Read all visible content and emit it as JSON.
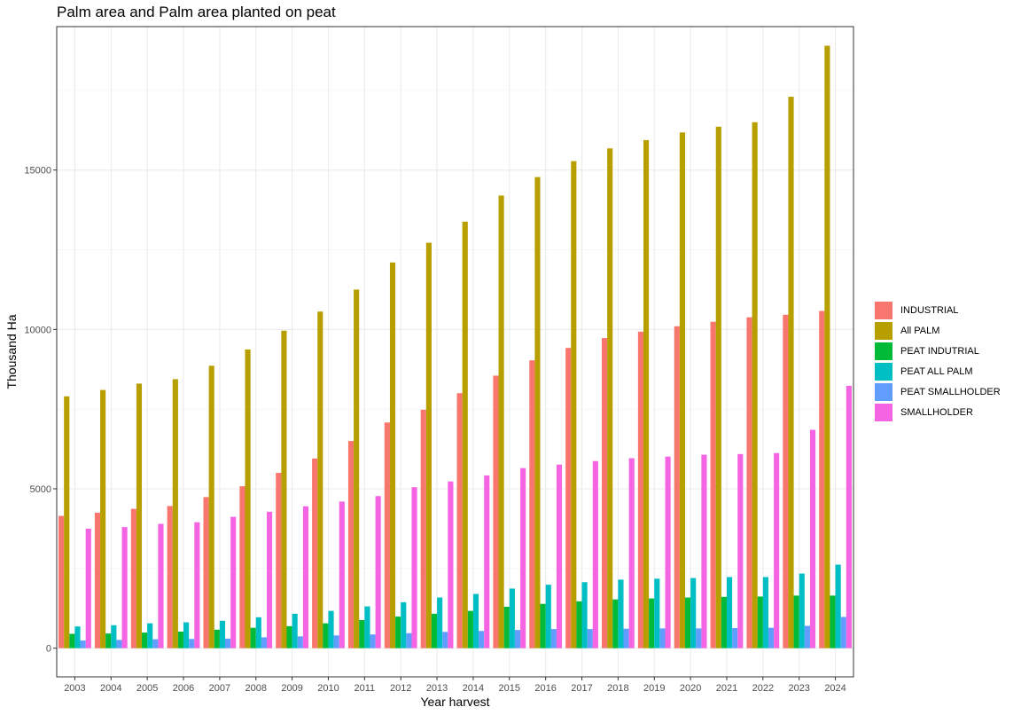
{
  "chart_data": {
    "type": "bar",
    "title": "Palm area and Palm area planted on peat",
    "xlabel": "Year harvest",
    "ylabel": "Thousand Ha",
    "ylim": [
      -900,
      19500
    ],
    "yticks": [
      0,
      5000,
      10000,
      15000
    ],
    "grid": true,
    "legend_position": "right",
    "categories": [
      "2003",
      "2004",
      "2005",
      "2006",
      "2007",
      "2008",
      "2009",
      "2010",
      "2011",
      "2012",
      "2013",
      "2014",
      "2015",
      "2016",
      "2017",
      "2018",
      "2019",
      "2020",
      "2021",
      "2022",
      "2023",
      "2024"
    ],
    "series": [
      {
        "name": "INDUSTRIAL",
        "color": "#F8766D",
        "values": [
          4150,
          4250,
          4370,
          4460,
          4740,
          5080,
          5500,
          5950,
          6500,
          7080,
          7480,
          8000,
          8550,
          9030,
          9420,
          9730,
          9930,
          10100,
          10240,
          10380,
          10460,
          10580
        ]
      },
      {
        "name": "All PALM",
        "color": "#B79F00",
        "values": [
          7900,
          8100,
          8300,
          8440,
          8860,
          9370,
          9960,
          10560,
          11250,
          12100,
          12720,
          13380,
          14200,
          14780,
          15280,
          15680,
          15940,
          16180,
          16360,
          16500,
          17300,
          18900
        ]
      },
      {
        "name": "PEAT INDUTRIAL",
        "color": "#00BA38",
        "values": [
          450,
          460,
          490,
          520,
          580,
          640,
          690,
          780,
          880,
          990,
          1080,
          1170,
          1300,
          1390,
          1470,
          1530,
          1560,
          1590,
          1610,
          1620,
          1650,
          1650
        ]
      },
      {
        "name": "PEAT ALL PALM",
        "color": "#00BFC4",
        "values": [
          680,
          720,
          780,
          810,
          860,
          970,
          1080,
          1170,
          1310,
          1440,
          1590,
          1700,
          1870,
          1990,
          2070,
          2150,
          2180,
          2200,
          2230,
          2230,
          2340,
          2620
        ]
      },
      {
        "name": "PEAT SMALLHOLDER",
        "color": "#619CFF",
        "values": [
          240,
          260,
          280,
          290,
          300,
          340,
          370,
          400,
          430,
          470,
          510,
          540,
          570,
          600,
          600,
          610,
          620,
          620,
          630,
          640,
          700,
          980
        ]
      },
      {
        "name": "SMALLHOLDER",
        "color": "#F564E3",
        "values": [
          3750,
          3800,
          3900,
          3950,
          4120,
          4280,
          4450,
          4600,
          4770,
          5050,
          5230,
          5420,
          5650,
          5760,
          5870,
          5960,
          6010,
          6070,
          6090,
          6120,
          6850,
          8230
        ]
      }
    ]
  }
}
